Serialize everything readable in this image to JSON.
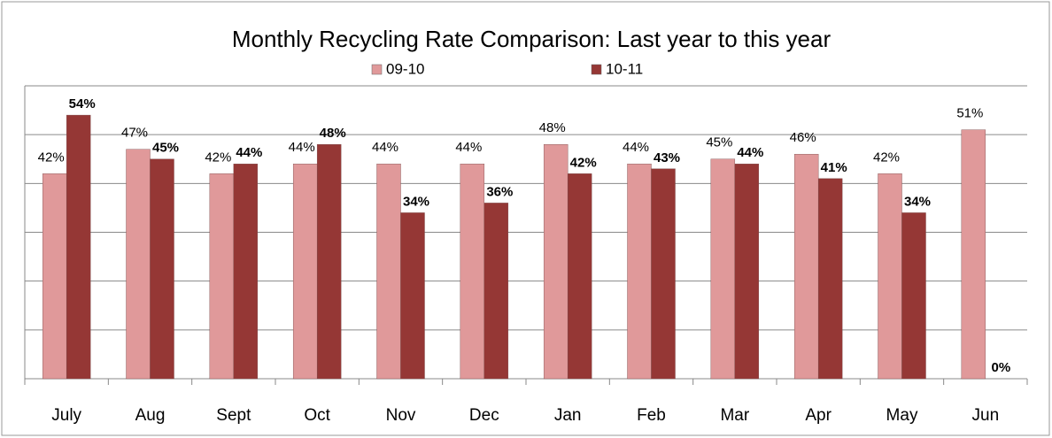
{
  "chart_data": {
    "type": "bar",
    "title": "Monthly Recycling Rate Comparison: Last year to this year",
    "categories": [
      "July",
      "Aug",
      "Sept",
      "Oct",
      "Nov",
      "Dec",
      "Jan",
      "Feb",
      "Mar",
      "Apr",
      "May",
      "Jun"
    ],
    "series": [
      {
        "name": "09-10",
        "color": "#e0999a",
        "values": [
          42,
          47,
          42,
          44,
          44,
          44,
          48,
          44,
          45,
          46,
          42,
          51
        ],
        "value_labels": [
          "42%",
          "47%",
          "42%",
          "44%",
          "44%",
          "44%",
          "48%",
          "44%",
          "45%",
          "46%",
          "42%",
          "51%"
        ]
      },
      {
        "name": "10-11",
        "color": "#953735",
        "values": [
          54,
          45,
          44,
          48,
          34,
          36,
          42,
          43,
          44,
          41,
          34,
          0
        ],
        "value_labels": [
          "54%",
          "45%",
          "44%",
          "48%",
          "34%",
          "36%",
          "42%",
          "43%",
          "44%",
          "41%",
          "34%",
          "0%"
        ]
      }
    ],
    "ylim": [
      0,
      60
    ],
    "yticks": [
      0,
      10,
      20,
      30,
      40,
      50,
      60
    ],
    "grid": true,
    "legend": "top"
  }
}
